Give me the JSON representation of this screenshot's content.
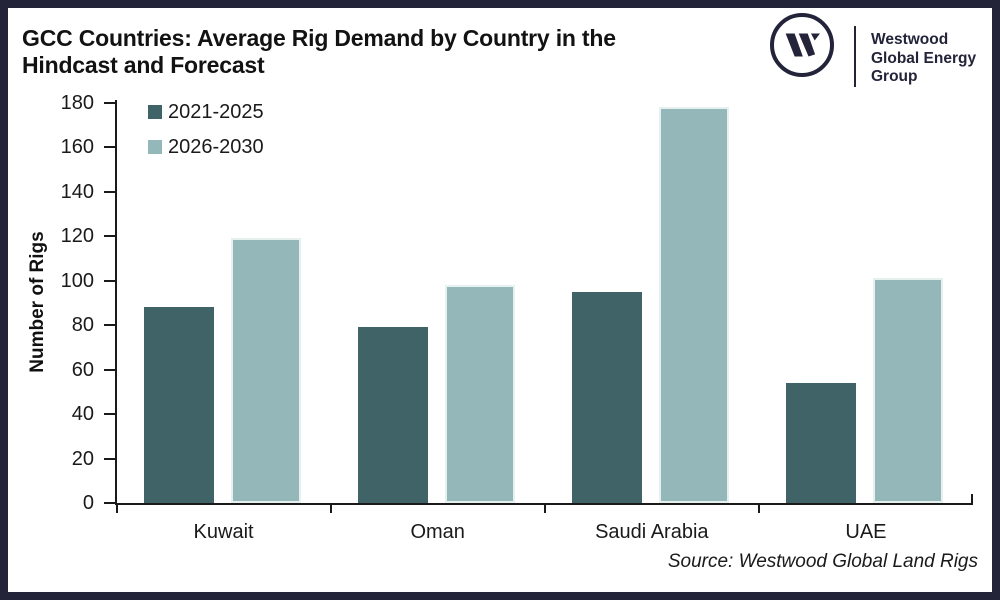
{
  "frame": {
    "border_color": "#23233A",
    "background": "#FFFFFF"
  },
  "header": {
    "title_line1": "GCC Countries: Average Rig Demand by Country in the",
    "title_line2": "Hindcast and Forecast",
    "logo": {
      "monogram": "W",
      "brand_line1": "Westwood",
      "brand_line2": "Global Energy",
      "brand_line3": "Group",
      "color": "#23233A"
    }
  },
  "chart_data": {
    "type": "bar",
    "title": "GCC Countries: Average Rig Demand by Country in the Hindcast and Forecast",
    "categories": [
      "Kuwait",
      "Oman",
      "Saudi Arabia",
      "UAE"
    ],
    "series": [
      {
        "name": "2021-2025",
        "color": "#3F6366",
        "values": [
          88,
          79,
          95,
          54
        ]
      },
      {
        "name": "2026-2030",
        "color": "#94B7BA",
        "border_color": "#E6F0EE",
        "values": [
          119,
          98,
          178,
          101
        ]
      }
    ],
    "xlabel": "",
    "ylabel": "Number of Rigs",
    "ylim": [
      0,
      180
    ],
    "ytick_step": 20,
    "yticks": [
      0,
      20,
      40,
      60,
      80,
      100,
      120,
      140,
      160,
      180
    ],
    "grid": false,
    "legend_position": "top-left",
    "axis_color": "#1A1A1A"
  },
  "footer": {
    "source": "Source: Westwood Global Land Rigs"
  }
}
